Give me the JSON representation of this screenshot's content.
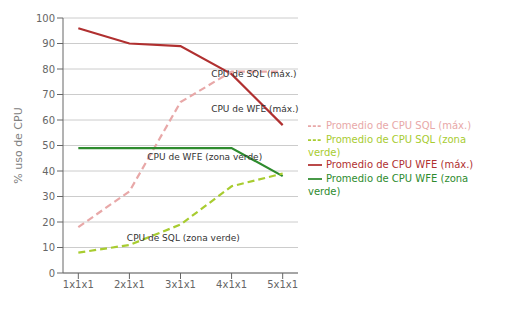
{
  "chart_data": {
    "type": "line",
    "x": [
      1,
      2,
      3,
      4,
      5
    ],
    "xlim": [
      0.7,
      5.3
    ],
    "xticks": [
      {
        "value": 1,
        "label": "1x1x1"
      },
      {
        "value": 2,
        "label": "2x1x1"
      },
      {
        "value": 3,
        "label": "3x1x1"
      },
      {
        "value": 4,
        "label": "4x1x1"
      },
      {
        "value": 5,
        "label": "5x1x1"
      }
    ],
    "ylabel": "% uso de CPU",
    "ylim": [
      0,
      100
    ],
    "yticks": [
      0,
      10,
      20,
      30,
      40,
      50,
      60,
      70,
      80,
      90,
      100
    ],
    "grid": true,
    "legend": "right",
    "series": [
      {
        "name": "Promedio de CPU WFE (máx.)",
        "color": "#b03030",
        "line_style": "solid",
        "values": [
          96,
          90,
          89,
          78,
          58
        ]
      },
      {
        "name": "Promedio de CPU SQL (máx.)",
        "color": "#e8a8a8",
        "line_style": "dashed",
        "values": [
          18,
          32,
          67,
          79,
          79
        ]
      },
      {
        "name": "Promedio de CPU WFE (zona verde)",
        "color": "#2e8b2e",
        "line_style": "solid",
        "values": [
          49,
          49,
          49,
          49,
          38
        ]
      },
      {
        "name": "Promedio de CPU SQL (zona verde)",
        "color": "#a8cc30",
        "line_style": "dashed",
        "values": [
          8,
          11,
          19,
          34,
          39
        ]
      }
    ],
    "annotations": [
      {
        "text": "CPU de SQL (máx.)",
        "x": 3.6,
        "y": 77
      },
      {
        "text": "CPU de WFE (máx.)",
        "x": 3.6,
        "y": 63
      },
      {
        "text": "CPU de WFE (zona verde)",
        "x": 2.35,
        "y": 44.5
      },
      {
        "text": "CPU de SQL (zona verde)",
        "x": 1.95,
        "y": 12.5
      }
    ]
  }
}
